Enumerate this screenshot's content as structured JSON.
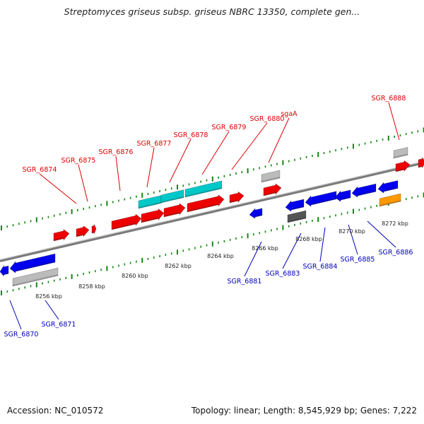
{
  "title": "Streptomyces griseus subsp. griseus NBRC 13350, complete gen...",
  "footer": {
    "accession": "Accession: NC_010572",
    "summary": "Topology: linear; Length: 8,545,929 bp; Genes: 7,222"
  },
  "colors": {
    "forward_gene": "#ee0000",
    "reverse_gene": "#0000ee",
    "cyan_feature": "#00c8c8",
    "gray_feature": "#bbbbbb",
    "dark_feature": "#555555",
    "orange_feature": "#ff9900",
    "top_label": "#dd0000",
    "bottom_label": "#0000bb",
    "tick": "#118811"
  },
  "scale_labels": [
    "8256 kbp",
    "8258 kbp",
    "8260 kbp",
    "8262 kbp",
    "8264 kbp",
    "8266 kbp",
    "8268 kbp",
    "8270 kbp",
    "8272 kbp"
  ],
  "top_gene_labels": [
    "SGR_6874",
    "SGR_6875",
    "SGR_6876",
    "SGR_6877",
    "SGR_6878",
    "SGR_6879",
    "SGR_6880",
    "sgaA",
    "SGR_6888"
  ],
  "bottom_gene_labels": [
    "SGR_6870",
    "SGR_6871",
    "SGR_6881",
    "SGR_6883",
    "SGR_6884",
    "SGR_6885",
    "SGR_6886"
  ]
}
